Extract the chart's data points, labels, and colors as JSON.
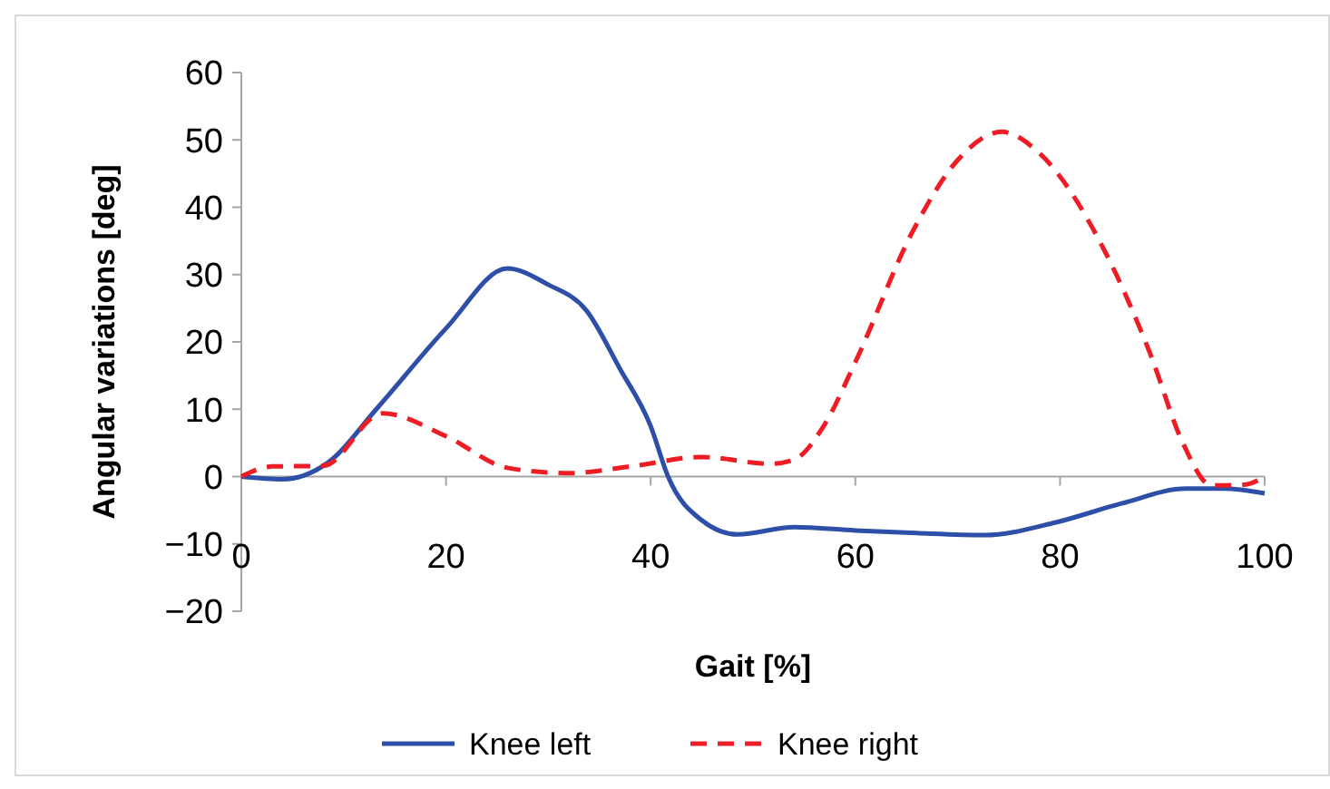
{
  "chart_data": {
    "type": "line",
    "xlabel": "Gait [%]",
    "ylabel": "Angular variations [deg]",
    "xlim": [
      0,
      100
    ],
    "ylim": [
      -20,
      60
    ],
    "xticks": [
      0,
      20,
      40,
      60,
      80,
      100
    ],
    "yticks": [
      60,
      50,
      40,
      30,
      20,
      10,
      0,
      {
        "value": -10,
        "label": "−10"
      },
      {
        "value": -20,
        "label": "−20"
      }
    ],
    "legend": "bottom",
    "grid": false,
    "series": [
      {
        "name": "Knee left",
        "color": "#2e4fa8",
        "line_style": "solid",
        "x": [
          0,
          4,
          8.4,
          13.3,
          20,
          26,
          30,
          33.7,
          37,
          40,
          41.7,
          45,
          48.5,
          54,
          60,
          66,
          72.6,
          79.6,
          86,
          92.3,
          96,
          100
        ],
        "values": [
          0,
          -0.4,
          2,
          10.2,
          22,
          30.9,
          28.5,
          24.7,
          16,
          7.5,
          0,
          -6.5,
          -8.6,
          -7.5,
          -8,
          -8.4,
          -8.7,
          -6.8,
          -4,
          -1.8,
          -1.8,
          -2.5
        ]
      },
      {
        "name": "Knee right",
        "color": "#ee1c24",
        "line_style": "dashed",
        "x": [
          0,
          3,
          8,
          13.8,
          20,
          26,
          32,
          38,
          45,
          51.7,
          54,
          56.9,
          60,
          65.6,
          70,
          74.3,
          78,
          84.3,
          88.8,
          92,
          94.8,
          98,
          100
        ],
        "values": [
          0,
          1.5,
          1.6,
          9.4,
          6,
          1.3,
          0.5,
          1.5,
          2.9,
          1.9,
          2.5,
          7.5,
          17,
          36.4,
          47,
          51.2,
          48,
          33.7,
          18.3,
          5,
          -1.3,
          -1.2,
          0
        ]
      }
    ]
  }
}
